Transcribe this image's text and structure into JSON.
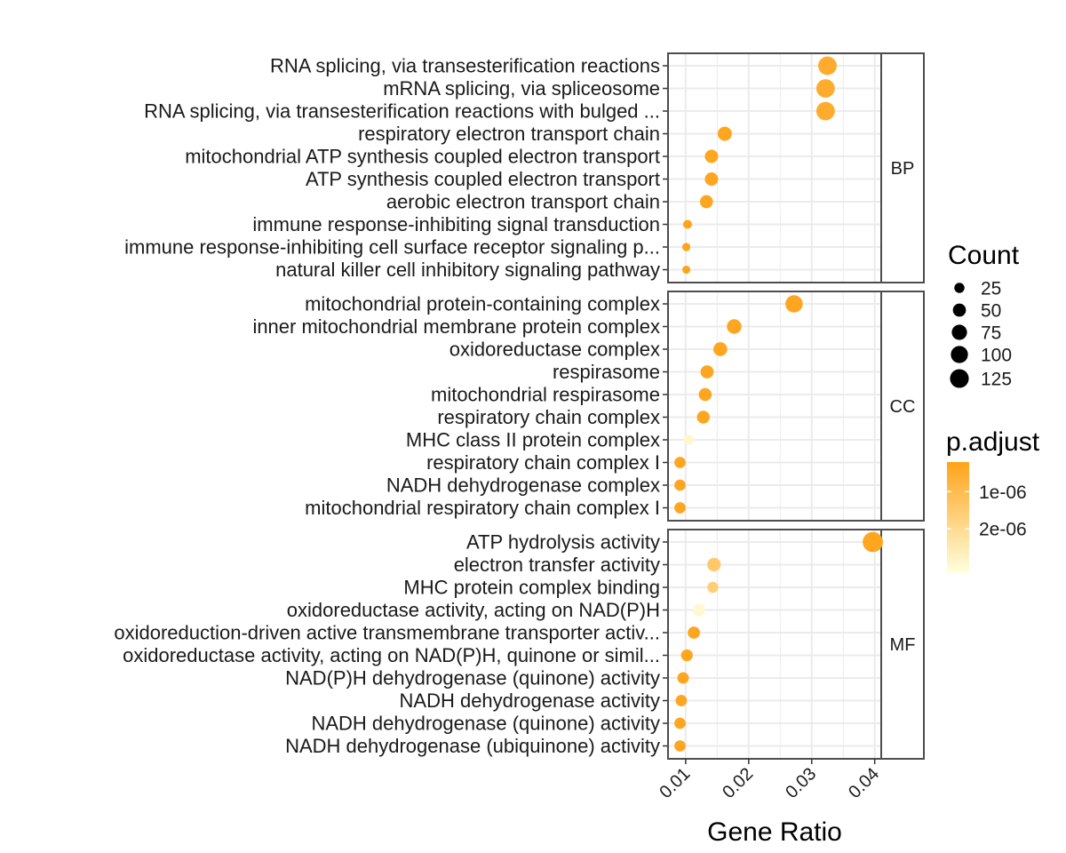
{
  "chart_data": {
    "type": "scatter",
    "xlabel": "Gene Ratio",
    "xlim": [
      0.0072,
      0.0478
    ],
    "xticks": [
      0.01,
      0.02,
      0.03,
      0.04
    ],
    "xtick_labels": [
      "0.01",
      "0.02",
      "0.03",
      "0.04"
    ],
    "facets": [
      {
        "name": "BP",
        "terms": [
          {
            "label": "RNA splicing, via transesterification reactions",
            "gene_ratio": 0.0325,
            "count": 122,
            "p_adjust": 5e-07
          },
          {
            "label": "mRNA splicing, via spliceosome",
            "gene_ratio": 0.0322,
            "count": 121,
            "p_adjust": 5e-07
          },
          {
            "label": "RNA splicing, via transesterification reactions with bulged ...",
            "gene_ratio": 0.0322,
            "count": 121,
            "p_adjust": 5e-07
          },
          {
            "label": "respiratory electron transport chain",
            "gene_ratio": 0.0162,
            "count": 62,
            "p_adjust": 3e-07
          },
          {
            "label": "mitochondrial ATP synthesis coupled electron transport",
            "gene_ratio": 0.0141,
            "count": 53,
            "p_adjust": 3e-07
          },
          {
            "label": "ATP synthesis coupled electron transport",
            "gene_ratio": 0.0141,
            "count": 53,
            "p_adjust": 3e-07
          },
          {
            "label": "aerobic electron transport chain",
            "gene_ratio": 0.0133,
            "count": 50,
            "p_adjust": 3e-07
          },
          {
            "label": "immune response-inhibiting signal transduction",
            "gene_ratio": 0.0103,
            "count": 17,
            "p_adjust": 2e-07
          },
          {
            "label": "immune response-inhibiting cell surface receptor signaling p...",
            "gene_ratio": 0.0101,
            "count": 13,
            "p_adjust": 2e-07
          },
          {
            "label": "natural killer cell inhibitory signaling pathway",
            "gene_ratio": 0.0101,
            "count": 12,
            "p_adjust": 2e-07
          }
        ]
      },
      {
        "name": "CC",
        "terms": [
          {
            "label": "mitochondrial protein-containing complex",
            "gene_ratio": 0.0272,
            "count": 103,
            "p_adjust": 3e-07
          },
          {
            "label": "inner mitochondrial membrane protein complex",
            "gene_ratio": 0.0177,
            "count": 67,
            "p_adjust": 3e-07
          },
          {
            "label": "oxidoreductase complex",
            "gene_ratio": 0.0155,
            "count": 59,
            "p_adjust": 3e-07
          },
          {
            "label": "respirasome",
            "gene_ratio": 0.0134,
            "count": 51,
            "p_adjust": 3e-07
          },
          {
            "label": "mitochondrial respirasome",
            "gene_ratio": 0.0131,
            "count": 49,
            "p_adjust": 3e-07
          },
          {
            "label": "respiratory chain complex",
            "gene_ratio": 0.0128,
            "count": 48,
            "p_adjust": 3e-07
          },
          {
            "label": "MHC class II protein complex",
            "gene_ratio": 0.0105,
            "count": 22,
            "p_adjust": 2.9e-06
          },
          {
            "label": "respiratory chain complex I",
            "gene_ratio": 0.0091,
            "count": 34,
            "p_adjust": 3e-07
          },
          {
            "label": "NADH dehydrogenase complex",
            "gene_ratio": 0.0091,
            "count": 34,
            "p_adjust": 3e-07
          },
          {
            "label": "mitochondrial respiratory chain complex I",
            "gene_ratio": 0.0091,
            "count": 34,
            "p_adjust": 3e-07
          }
        ]
      },
      {
        "name": "MF",
        "terms": [
          {
            "label": "ATP hydrolysis activity",
            "gene_ratio": 0.0397,
            "count": 150,
            "p_adjust": 3e-07
          },
          {
            "label": "electron transfer activity",
            "gene_ratio": 0.0145,
            "count": 55,
            "p_adjust": 1.4e-06
          },
          {
            "label": "MHC protein complex binding",
            "gene_ratio": 0.0143,
            "count": 32,
            "p_adjust": 1.6e-06
          },
          {
            "label": "oxidoreductase activity, acting on NAD(P)H",
            "gene_ratio": 0.0121,
            "count": 47,
            "p_adjust": 3e-06
          },
          {
            "label": "oxidoreduction-driven active transmembrane transporter activ...",
            "gene_ratio": 0.0113,
            "count": 42,
            "p_adjust": 3e-07
          },
          {
            "label": "oxidoreductase activity, acting on NAD(P)H, quinone or simil...",
            "gene_ratio": 0.0102,
            "count": 38,
            "p_adjust": 3e-07
          },
          {
            "label": "NAD(P)H dehydrogenase (quinone) activity",
            "gene_ratio": 0.0096,
            "count": 36,
            "p_adjust": 3e-07
          },
          {
            "label": "NADH dehydrogenase activity",
            "gene_ratio": 0.0093,
            "count": 35,
            "p_adjust": 3e-07
          },
          {
            "label": "NADH dehydrogenase (quinone) activity",
            "gene_ratio": 0.0091,
            "count": 34,
            "p_adjust": 3e-07
          },
          {
            "label": "NADH dehydrogenase (ubiquinone) activity",
            "gene_ratio": 0.0091,
            "count": 34,
            "p_adjust": 3e-07
          }
        ]
      }
    ],
    "reference_line_x": 0.041,
    "size_legend": {
      "title": "Count",
      "breaks": [
        25,
        50,
        75,
        100,
        125
      ],
      "labels": [
        "25",
        "50",
        "75",
        "100",
        "125"
      ]
    },
    "color_legend": {
      "title": "p.adjust",
      "tick_values": [
        1e-06,
        2e-06
      ],
      "tick_labels": [
        "1e-06",
        "2e-06"
      ],
      "domain": [
        2e-07,
        3.2e-06
      ],
      "low_color": "#FFA31A",
      "high_color": "#FFFFE0"
    }
  },
  "colors": {
    "panel_border": "#4d4d4d",
    "grid": "#ebebeb",
    "ref_line": "#4d4d4d"
  }
}
